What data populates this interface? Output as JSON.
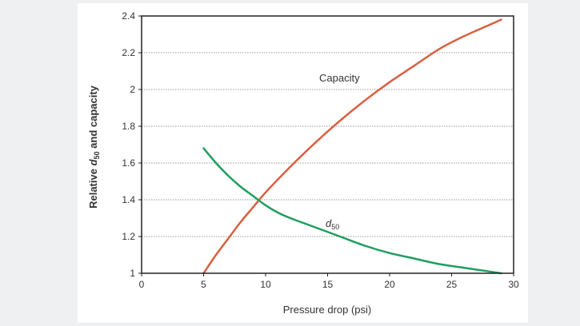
{
  "chart_data": {
    "type": "line",
    "xlabel": "Pressure drop (psi)",
    "ylabel_parts": [
      "Relative ",
      "d",
      "50",
      " and capacity"
    ],
    "xlim": [
      0,
      30
    ],
    "ylim": [
      1,
      2.4
    ],
    "x_ticks": [
      0,
      5,
      10,
      15,
      20,
      25,
      30
    ],
    "y_ticks": [
      1,
      1.2,
      1.4,
      1.6,
      1.8,
      2,
      2.2,
      2.4
    ],
    "x_tick_labels": [
      "0",
      "5",
      "10",
      "15",
      "20",
      "25",
      "30"
    ],
    "y_tick_labels": [
      "1",
      "1.2",
      "1.4",
      "1.6",
      "1.8",
      "2",
      "2.2",
      "2.4"
    ],
    "grid": "horizontal dotted",
    "series": [
      {
        "name": "Capacity",
        "color": "#d9603f",
        "x": [
          5,
          6,
          7,
          8,
          9,
          10,
          12,
          14,
          16,
          18,
          20,
          22,
          24,
          26,
          28,
          29
        ],
        "y": [
          1.0,
          1.1,
          1.19,
          1.28,
          1.36,
          1.44,
          1.58,
          1.71,
          1.83,
          1.94,
          2.04,
          2.13,
          2.22,
          2.29,
          2.35,
          2.38
        ]
      },
      {
        "name_parts": [
          "d",
          "50"
        ],
        "color": "#1f9e5e",
        "x": [
          5,
          6,
          7,
          8,
          9,
          10,
          11,
          12,
          14,
          16,
          18,
          20,
          22,
          24,
          26,
          28,
          29
        ],
        "y": [
          1.68,
          1.6,
          1.53,
          1.47,
          1.42,
          1.37,
          1.33,
          1.3,
          1.25,
          1.2,
          1.15,
          1.11,
          1.08,
          1.05,
          1.03,
          1.01,
          1.0
        ]
      }
    ]
  }
}
